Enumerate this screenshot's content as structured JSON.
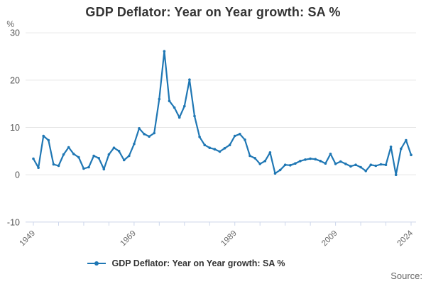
{
  "header": {
    "title": "GDP Deflator: Year on Year growth: SA %"
  },
  "legend": {
    "label": "GDP Deflator: Year on Year growth: SA %"
  },
  "footer": {
    "source_label": "Source:"
  },
  "colors": {
    "line": "#1f77b4",
    "grid": "#e6e6e6",
    "axis_line": "#ccd6eb",
    "tick_text": "#666666",
    "ytick_text": "#555555"
  },
  "chart_data": {
    "type": "line",
    "title": "GDP Deflator: Year on Year growth: SA %",
    "series_name": "GDP Deflator: Year on Year growth: SA %",
    "xlabel": "",
    "ylabel": "%",
    "x_min": 1949,
    "x_max": 2024,
    "ylim": [
      -10,
      30
    ],
    "yticks": [
      30,
      20,
      10,
      0,
      -10
    ],
    "xtick_step_years": 5,
    "xtick_labels_shown": [
      "1949",
      "1969",
      "1989",
      "2009",
      "2024"
    ],
    "grid": "horizontal",
    "legend_position": "bottom-center",
    "markers": true,
    "x": [
      1949,
      1950,
      1951,
      1952,
      1953,
      1954,
      1955,
      1956,
      1957,
      1958,
      1959,
      1960,
      1961,
      1962,
      1963,
      1964,
      1965,
      1966,
      1967,
      1968,
      1969,
      1970,
      1971,
      1972,
      1973,
      1974,
      1975,
      1976,
      1977,
      1978,
      1979,
      1980,
      1981,
      1982,
      1983,
      1984,
      1985,
      1986,
      1987,
      1988,
      1989,
      1990,
      1991,
      1992,
      1993,
      1994,
      1995,
      1996,
      1997,
      1998,
      1999,
      2000,
      2001,
      2002,
      2003,
      2004,
      2005,
      2006,
      2007,
      2008,
      2009,
      2010,
      2011,
      2012,
      2013,
      2014,
      2015,
      2016,
      2017,
      2018,
      2019,
      2020,
      2021,
      2022,
      2023,
      2024
    ],
    "values": [
      3.4,
      1.5,
      8.2,
      7.3,
      2.2,
      1.9,
      4.3,
      5.8,
      4.4,
      3.7,
      1.3,
      1.6,
      4.0,
      3.5,
      1.2,
      4.3,
      5.7,
      5.0,
      3.1,
      4.0,
      6.5,
      9.8,
      8.6,
      8.1,
      8.8,
      16.0,
      26.1,
      15.6,
      14.2,
      12.1,
      14.5,
      20.1,
      12.4,
      8.0,
      6.3,
      5.7,
      5.4,
      4.9,
      5.6,
      6.3,
      8.2,
      8.6,
      7.4,
      4.0,
      3.5,
      2.3,
      2.9,
      4.7,
      0.3,
      1.0,
      2.1,
      2.0,
      2.4,
      2.9,
      3.2,
      3.4,
      3.3,
      2.9,
      2.4,
      4.4,
      2.3,
      2.8,
      2.3,
      1.8,
      2.1,
      1.6,
      0.8,
      2.1,
      1.9,
      2.2,
      2.1,
      5.9,
      0.0,
      5.5,
      7.3,
      4.2
    ]
  }
}
